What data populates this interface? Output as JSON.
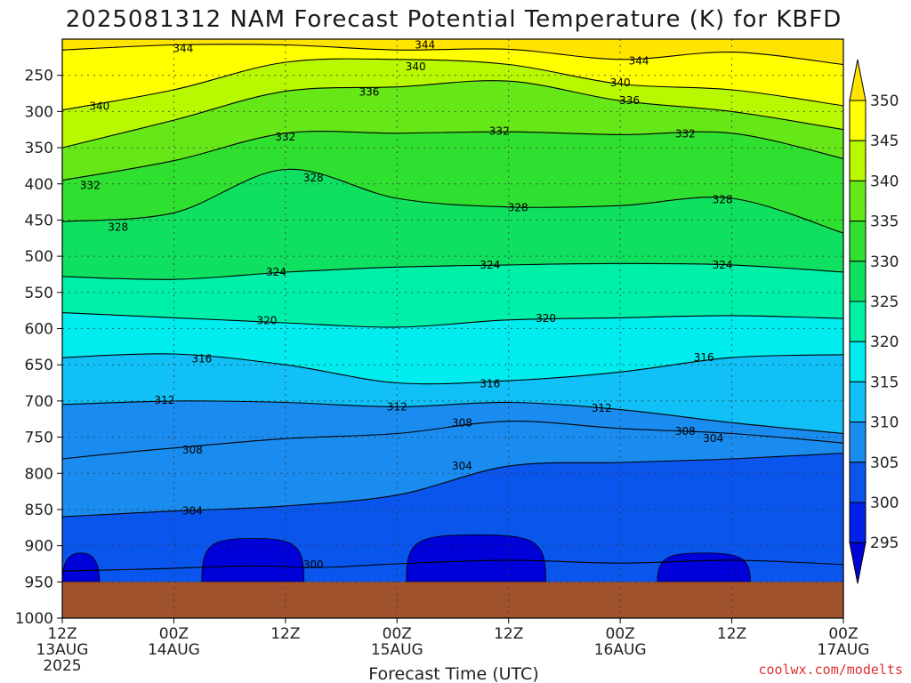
{
  "title": "2025081312 NAM Forecast Potential Temperature (K) for KBFD",
  "credit": "coolwx.com/modelts",
  "chart_data": {
    "type": "heatmap",
    "title": "2025081312 NAM Forecast Potential Temperature (K) for KBFD",
    "xlabel": "Forecast Time (UTC)",
    "ylabel": "",
    "x_ticks": [
      {
        "hour": 0,
        "line1": "12Z",
        "line2": "13AUG",
        "line3": "2025"
      },
      {
        "hour": 12,
        "line1": "00Z",
        "line2": "14AUG",
        "line3": ""
      },
      {
        "hour": 24,
        "line1": "12Z",
        "line2": "",
        "line3": ""
      },
      {
        "hour": 36,
        "line1": "00Z",
        "line2": "15AUG",
        "line3": ""
      },
      {
        "hour": 48,
        "line1": "12Z",
        "line2": "",
        "line3": ""
      },
      {
        "hour": 60,
        "line1": "00Z",
        "line2": "16AUG",
        "line3": ""
      },
      {
        "hour": 72,
        "line1": "12Z",
        "line2": "",
        "line3": ""
      },
      {
        "hour": 84,
        "line1": "00Z",
        "line2": "17AUG",
        "line3": ""
      }
    ],
    "y_ticks": [
      "250",
      "300",
      "350",
      "400",
      "450",
      "500",
      "550",
      "600",
      "650",
      "700",
      "750",
      "800",
      "850",
      "900",
      "950",
      "1000"
    ],
    "y_tick_values": [
      250,
      300,
      350,
      400,
      450,
      500,
      550,
      600,
      650,
      700,
      750,
      800,
      850,
      900,
      950,
      1000
    ],
    "ylim": [
      200,
      1000
    ],
    "xlim": [
      0,
      84
    ],
    "ground_pressure": 950,
    "grid": true,
    "colorbar": {
      "levels": [
        "295",
        "300",
        "305",
        "310",
        "315",
        "320",
        "325",
        "330",
        "335",
        "340",
        "345",
        "350"
      ],
      "colors": [
        "#0000d8",
        "#0022e8",
        "#0a55ec",
        "#1a8cf0",
        "#10c0f6",
        "#00ecee",
        "#00f0a8",
        "#10e060",
        "#30e030",
        "#66e818",
        "#b8f800",
        "#ffff00",
        "#ffe400"
      ]
    },
    "contours": [
      {
        "value": 300,
        "label": "300",
        "points": [
          [
            0,
            935
          ],
          [
            10,
            932
          ],
          [
            20,
            928
          ],
          [
            28,
            930
          ],
          [
            36,
            925
          ],
          [
            48,
            920
          ],
          [
            60,
            924
          ],
          [
            72,
            920
          ],
          [
            84,
            926
          ]
        ]
      },
      {
        "value": 304,
        "label": "304",
        "points": [
          [
            0,
            860
          ],
          [
            6,
            856
          ],
          [
            12,
            852
          ],
          [
            24,
            845
          ],
          [
            36,
            830
          ],
          [
            48,
            790
          ],
          [
            60,
            785
          ],
          [
            72,
            780
          ],
          [
            84,
            772
          ]
        ]
      },
      {
        "value": 308,
        "label": "308",
        "points": [
          [
            0,
            780
          ],
          [
            6,
            772
          ],
          [
            12,
            765
          ],
          [
            24,
            752
          ],
          [
            36,
            745
          ],
          [
            48,
            728
          ],
          [
            60,
            738
          ],
          [
            72,
            745
          ],
          [
            84,
            758
          ]
        ]
      },
      {
        "value": 312,
        "label": "312",
        "points": [
          [
            0,
            705
          ],
          [
            12,
            700
          ],
          [
            24,
            702
          ],
          [
            36,
            708
          ],
          [
            48,
            702
          ],
          [
            60,
            712
          ],
          [
            72,
            730
          ],
          [
            84,
            745
          ]
        ]
      },
      {
        "value": 316,
        "label": "316",
        "points": [
          [
            0,
            640
          ],
          [
            12,
            635
          ],
          [
            24,
            650
          ],
          [
            36,
            675
          ],
          [
            48,
            672
          ],
          [
            60,
            660
          ],
          [
            72,
            640
          ],
          [
            84,
            636
          ]
        ]
      },
      {
        "value": 320,
        "label": "320",
        "points": [
          [
            0,
            578
          ],
          [
            12,
            585
          ],
          [
            24,
            592
          ],
          [
            36,
            598
          ],
          [
            48,
            588
          ],
          [
            60,
            585
          ],
          [
            72,
            582
          ],
          [
            84,
            586
          ]
        ]
      },
      {
        "value": 324,
        "label": "324",
        "points": [
          [
            0,
            528
          ],
          [
            12,
            532
          ],
          [
            24,
            522
          ],
          [
            36,
            515
          ],
          [
            48,
            512
          ],
          [
            60,
            510
          ],
          [
            72,
            512
          ],
          [
            84,
            522
          ]
        ]
      },
      {
        "value": 328,
        "label": "328",
        "points": [
          [
            0,
            452
          ],
          [
            12,
            440
          ],
          [
            24,
            380
          ],
          [
            36,
            420
          ],
          [
            48,
            432
          ],
          [
            60,
            430
          ],
          [
            72,
            420
          ],
          [
            84,
            468
          ]
        ]
      },
      {
        "value": 332,
        "label": "332",
        "points": [
          [
            0,
            395
          ],
          [
            12,
            368
          ],
          [
            24,
            330
          ],
          [
            36,
            330
          ],
          [
            48,
            328
          ],
          [
            60,
            332
          ],
          [
            72,
            330
          ],
          [
            84,
            365
          ]
        ]
      },
      {
        "value": 336,
        "label": "336",
        "points": [
          [
            0,
            350
          ],
          [
            12,
            312
          ],
          [
            24,
            272
          ],
          [
            36,
            266
          ],
          [
            48,
            258
          ],
          [
            60,
            285
          ],
          [
            72,
            300
          ],
          [
            84,
            325
          ]
        ]
      },
      {
        "value": 340,
        "label": "340",
        "points": [
          [
            0,
            298
          ],
          [
            12,
            270
          ],
          [
            24,
            232
          ],
          [
            36,
            228
          ],
          [
            48,
            235
          ],
          [
            60,
            262
          ],
          [
            72,
            270
          ],
          [
            84,
            292
          ]
        ]
      },
      {
        "value": 344,
        "label": "344",
        "points": [
          [
            0,
            215
          ],
          [
            12,
            208
          ],
          [
            24,
            208
          ],
          [
            36,
            215
          ],
          [
            48,
            214
          ],
          [
            60,
            228
          ],
          [
            72,
            218
          ],
          [
            84,
            235
          ]
        ]
      }
    ],
    "contour_labels": [
      {
        "text": "344",
        "hour": 13,
        "p": 213
      },
      {
        "text": "344",
        "hour": 39,
        "p": 208
      },
      {
        "text": "340",
        "hour": 38,
        "p": 238
      },
      {
        "text": "344",
        "hour": 62,
        "p": 230
      },
      {
        "text": "340",
        "hour": 60,
        "p": 260
      },
      {
        "text": "336",
        "hour": 33,
        "p": 273
      },
      {
        "text": "336",
        "hour": 61,
        "p": 285
      },
      {
        "text": "340",
        "hour": 4,
        "p": 293
      },
      {
        "text": "332",
        "hour": 24,
        "p": 335
      },
      {
        "text": "332",
        "hour": 47,
        "p": 327
      },
      {
        "text": "332",
        "hour": 67,
        "p": 331
      },
      {
        "text": "332",
        "hour": 3,
        "p": 402
      },
      {
        "text": "328",
        "hour": 27,
        "p": 392
      },
      {
        "text": "328",
        "hour": 49,
        "p": 433
      },
      {
        "text": "328",
        "hour": 71,
        "p": 422
      },
      {
        "text": "328",
        "hour": 6,
        "p": 460
      },
      {
        "text": "324",
        "hour": 23,
        "p": 522
      },
      {
        "text": "324",
        "hour": 46,
        "p": 512
      },
      {
        "text": "324",
        "hour": 71,
        "p": 512
      },
      {
        "text": "320",
        "hour": 22,
        "p": 589
      },
      {
        "text": "320",
        "hour": 52,
        "p": 586
      },
      {
        "text": "316",
        "hour": 15,
        "p": 642
      },
      {
        "text": "316",
        "hour": 46,
        "p": 676
      },
      {
        "text": "316",
        "hour": 69,
        "p": 640
      },
      {
        "text": "312",
        "hour": 11,
        "p": 699
      },
      {
        "text": "312",
        "hour": 36,
        "p": 708
      },
      {
        "text": "312",
        "hour": 58,
        "p": 710
      },
      {
        "text": "308",
        "hour": 14,
        "p": 768
      },
      {
        "text": "308",
        "hour": 43,
        "p": 730
      },
      {
        "text": "308",
        "hour": 67,
        "p": 742
      },
      {
        "text": "304",
        "hour": 14,
        "p": 852
      },
      {
        "text": "304",
        "hour": 43,
        "p": 790
      },
      {
        "text": "304",
        "hour": 70,
        "p": 752
      },
      {
        "text": "300",
        "hour": 27,
        "p": 926
      }
    ],
    "low_pockets": [
      {
        "hour_start": 0,
        "hour_end": 4,
        "p_top": 910
      },
      {
        "hour_start": 15,
        "hour_end": 26,
        "p_top": 890
      },
      {
        "hour_start": 37,
        "hour_end": 52,
        "p_top": 885
      },
      {
        "hour_start": 64,
        "hour_end": 74,
        "p_top": 910
      }
    ]
  }
}
